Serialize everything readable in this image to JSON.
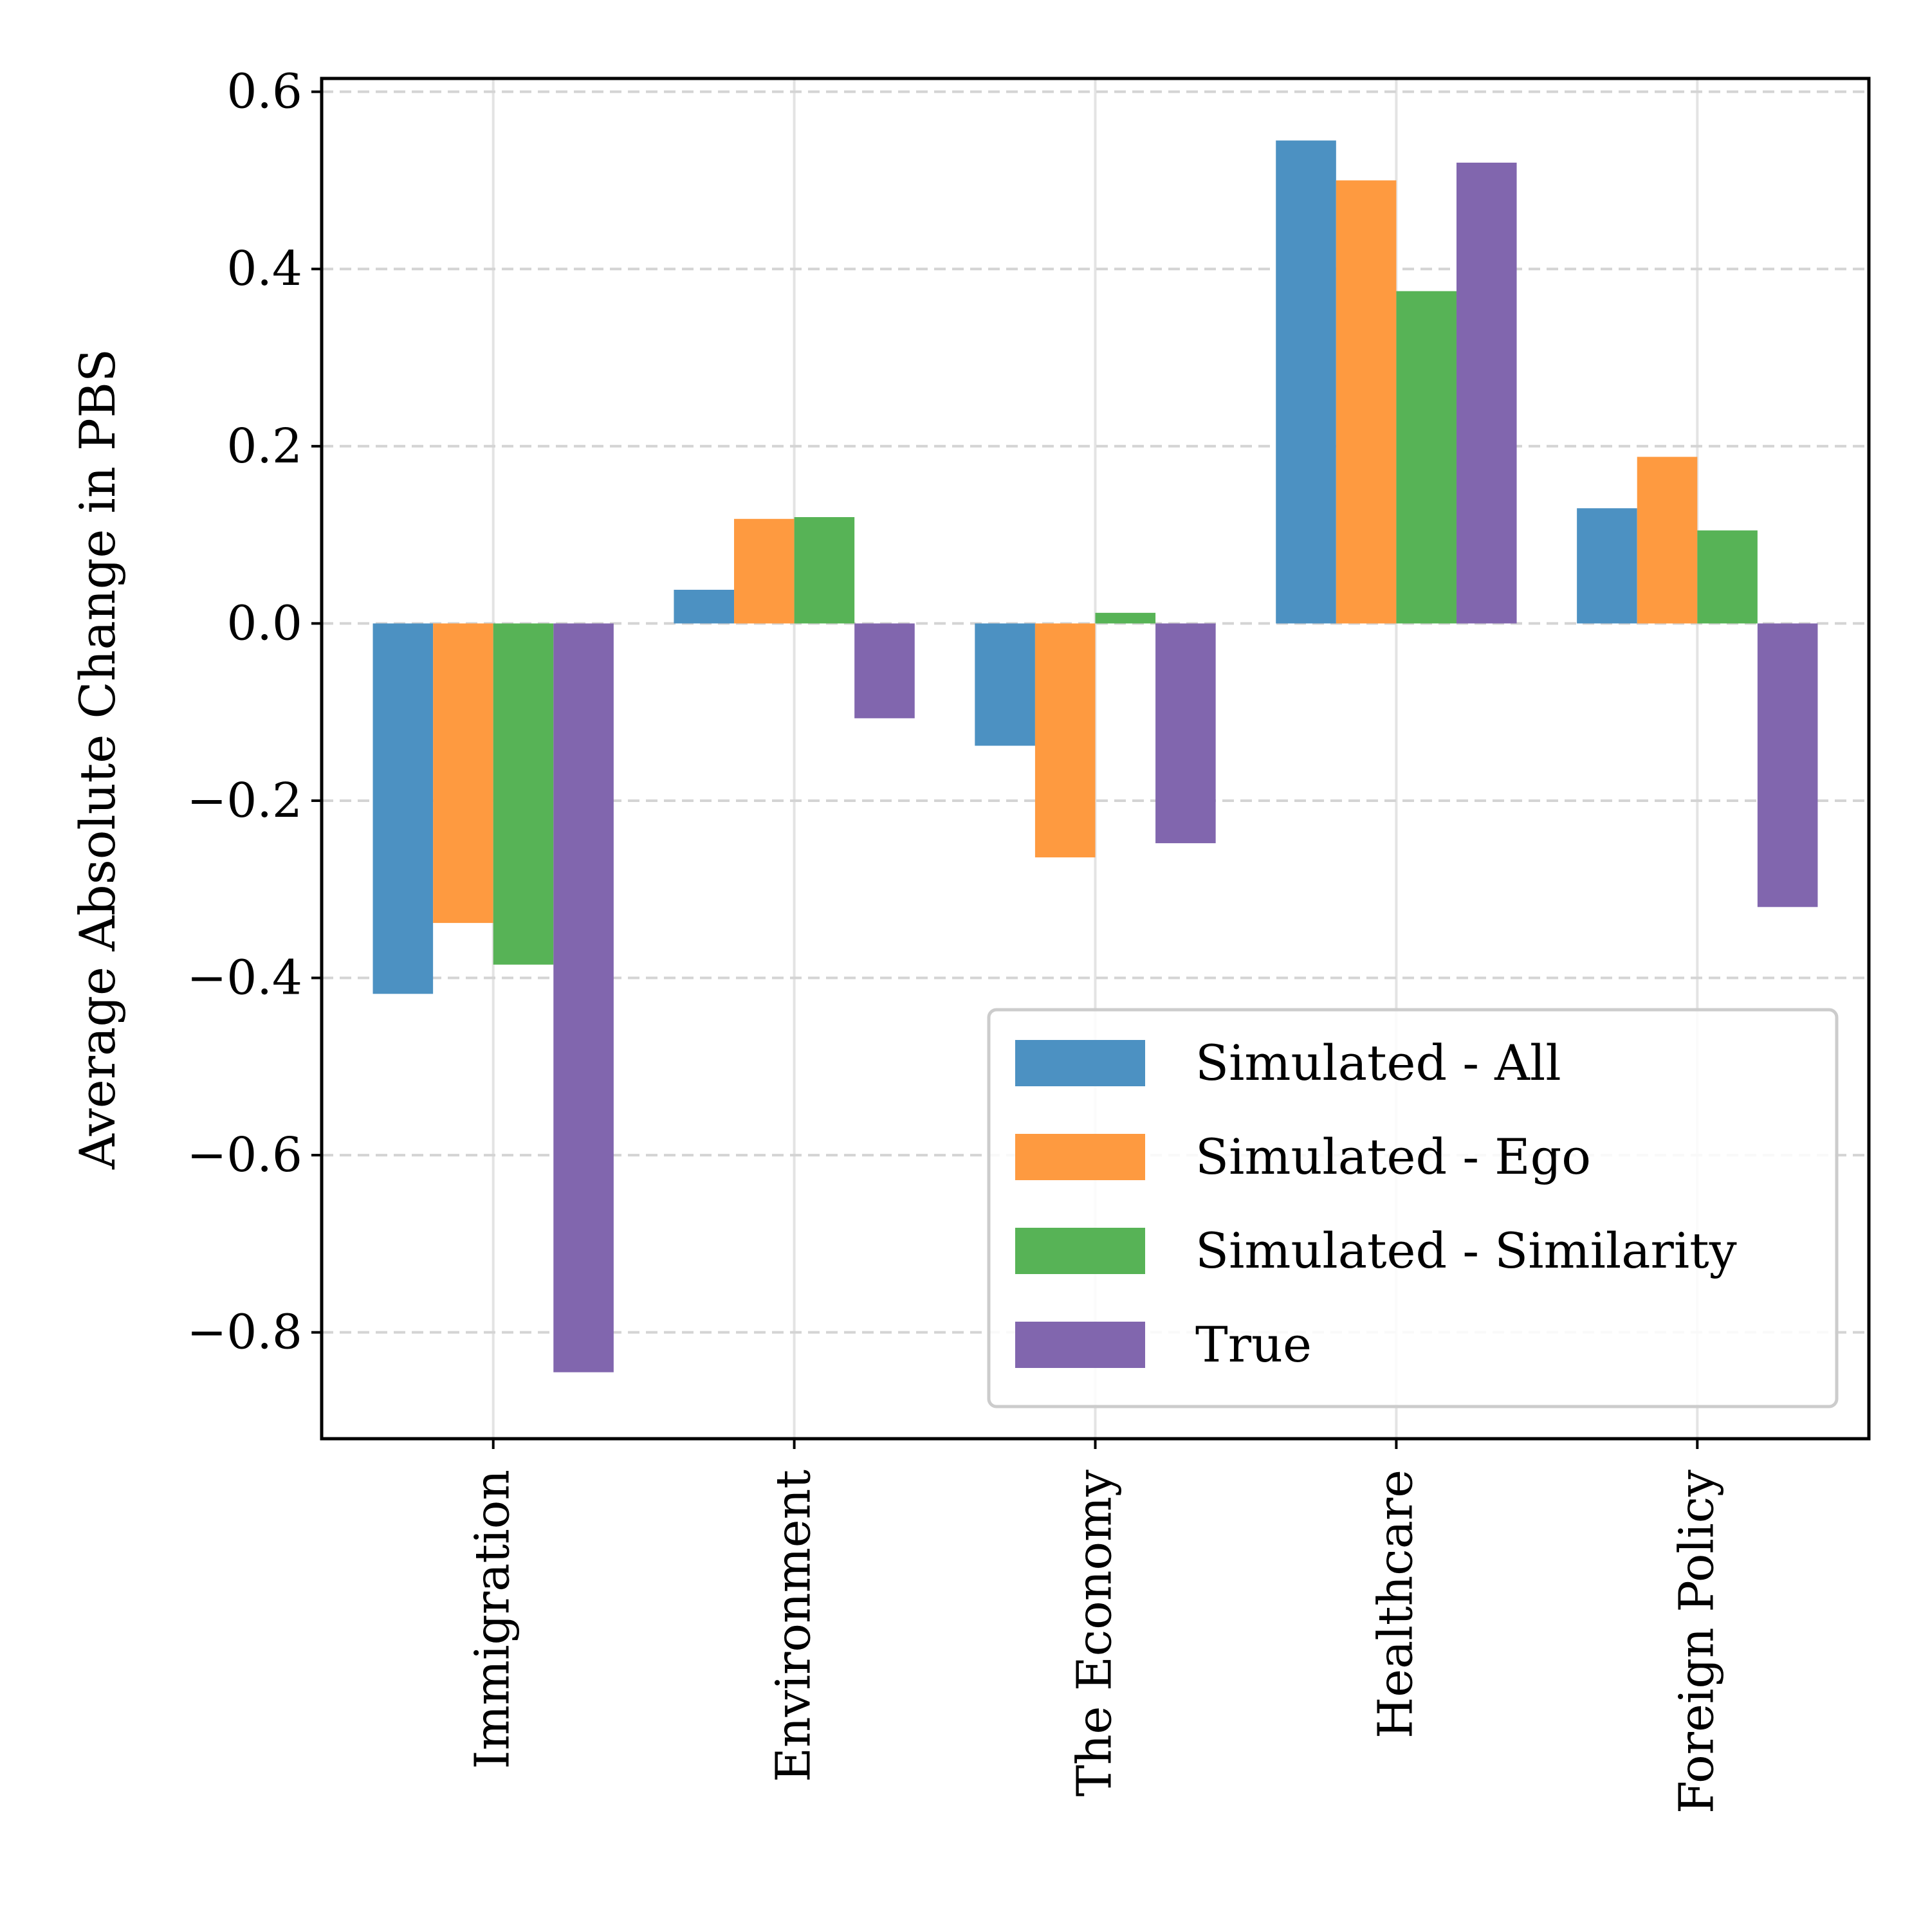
{
  "chart_data": {
    "type": "bar",
    "title": "",
    "xlabel": "",
    "ylabel": "Average Absolute Change in PBS",
    "categories": [
      "Immigration",
      "Environment",
      "The Economy",
      "Healthcare",
      "Foreign Policy"
    ],
    "series": [
      {
        "name": "Simulated - All",
        "color": "#4c91c2",
        "values": [
          -0.418,
          0.038,
          -0.138,
          0.545,
          0.13
        ]
      },
      {
        "name": "Simulated - Ego",
        "color": "#fe9a40",
        "values": [
          -0.338,
          0.118,
          -0.264,
          0.5,
          0.188
        ]
      },
      {
        "name": "Simulated - Similarity",
        "color": "#57b356",
        "values": [
          -0.385,
          0.12,
          0.012,
          0.375,
          0.105
        ]
      },
      {
        "name": "True",
        "color": "#8166ae",
        "values": [
          -0.845,
          -0.107,
          -0.248,
          0.52,
          -0.32
        ]
      }
    ],
    "yticks": [
      "0.6",
      "0.4",
      "0.2",
      "0.0",
      "−0.2",
      "−0.4",
      "−0.6",
      "−0.8"
    ],
    "ytick_values": [
      0.6,
      0.4,
      0.2,
      0.0,
      -0.2,
      -0.4,
      -0.6,
      -0.8
    ],
    "ylim": [
      -0.92,
      0.615
    ],
    "grid": {
      "y": "dashed",
      "x": "solid-light"
    },
    "legend": {
      "position": "bottom-right"
    }
  }
}
